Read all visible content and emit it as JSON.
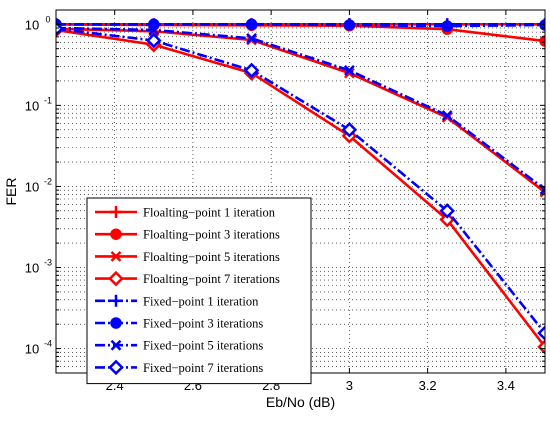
{
  "chart_data": {
    "type": "line",
    "xlabel": "Eb/No (dB)",
    "ylabel": "FER",
    "xlim": [
      2.25,
      3.5
    ],
    "ylim": [
      5e-05,
      1.5
    ],
    "yscale": "log",
    "grid": true,
    "legend_position": "bottom-left",
    "x_ticks": [
      2.4,
      2.6,
      2.8,
      3,
      3.2,
      3.4
    ],
    "x_tick_labels": [
      "2.4",
      "2.6",
      "2.8",
      "3",
      "3.2",
      "3.4"
    ],
    "y_ticks": [
      0.0001,
      0.001,
      0.01,
      0.1,
      1
    ],
    "y_tick_bases": [
      "10",
      "10",
      "10",
      "10",
      "10"
    ],
    "y_tick_exponents": [
      "-4",
      "-3",
      "-2",
      "-1",
      "0"
    ],
    "series": [
      {
        "name": "Floalting−point 1 iteration",
        "color": "#ff0000",
        "dash": "solid",
        "marker": "plus",
        "x": [
          2.25,
          2.5,
          2.75,
          3,
          3.25,
          3.5
        ],
        "values": [
          1,
          1,
          1,
          1,
          1,
          1
        ]
      },
      {
        "name": "Floalting−point 3 iterations",
        "color": "#ff0000",
        "dash": "solid",
        "marker": "circle",
        "x": [
          2.25,
          2.5,
          2.75,
          3,
          3.25,
          3.5
        ],
        "values": [
          1,
          0.98,
          0.97,
          0.96,
          0.87,
          0.62
        ]
      },
      {
        "name": "Floalting−point 5 iterations",
        "color": "#ff0000",
        "dash": "solid",
        "marker": "x",
        "x": [
          2.25,
          2.5,
          2.75,
          3,
          3.25,
          3.5
        ],
        "values": [
          0.88,
          0.82,
          0.64,
          0.25,
          0.071,
          0.0085
        ]
      },
      {
        "name": "Floalting−point 7 iterations",
        "color": "#ff0000",
        "dash": "solid",
        "marker": "diamond",
        "x": [
          2.25,
          2.5,
          2.75,
          3,
          3.25,
          3.5
        ],
        "values": [
          0.85,
          0.56,
          0.25,
          0.042,
          0.0039,
          0.000105
        ]
      },
      {
        "name": "Fixed−point 1 iteration",
        "color": "#0000ff",
        "dash": "dashdot",
        "marker": "plus",
        "x": [
          2.25,
          2.5,
          2.75,
          3,
          3.25,
          3.5
        ],
        "values": [
          1,
          1,
          1,
          1,
          1,
          1
        ]
      },
      {
        "name": "Fixed−point 3 iterations",
        "color": "#0000ff",
        "dash": "dashdot",
        "marker": "circle",
        "x": [
          2.25,
          2.5,
          2.75,
          3,
          3.25,
          3.5
        ],
        "values": [
          1,
          1,
          1,
          0.98,
          0.95,
          0.98
        ]
      },
      {
        "name": "Fixed−point 5 iterations",
        "color": "#0000ff",
        "dash": "dashdot",
        "marker": "x",
        "x": [
          2.25,
          2.5,
          2.75,
          3,
          3.25,
          3.5
        ],
        "values": [
          0.9,
          0.85,
          0.67,
          0.27,
          0.075,
          0.0092
        ]
      },
      {
        "name": "Fixed−point 7 iterations",
        "color": "#0000ff",
        "dash": "dashdot",
        "marker": "diamond",
        "x": [
          2.25,
          2.5,
          2.75,
          3,
          3.25,
          3.5
        ],
        "values": [
          0.88,
          0.63,
          0.27,
          0.05,
          0.005,
          0.000155
        ]
      }
    ]
  }
}
